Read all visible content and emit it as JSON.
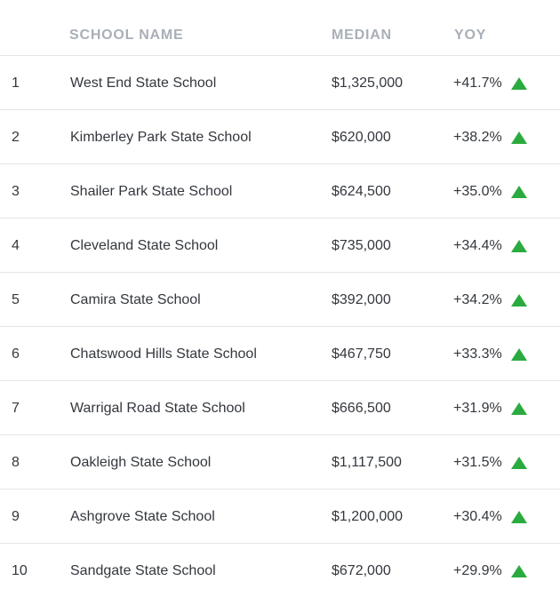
{
  "table": {
    "headers": {
      "name": "SCHOOL NAME",
      "median": "MEDIAN",
      "yoy": "YOY"
    },
    "rows": [
      {
        "rank": "1",
        "name": "West End State School",
        "median": "$1,325,000",
        "yoy": "+41.7%",
        "trend": "up-arrow-icon"
      },
      {
        "rank": "2",
        "name": "Kimberley Park State School",
        "median": "$620,000",
        "yoy": "+38.2%",
        "trend": "up-arrow-icon"
      },
      {
        "rank": "3",
        "name": "Shailer Park State School",
        "median": "$624,500",
        "yoy": "+35.0%",
        "trend": "up-arrow-icon"
      },
      {
        "rank": "4",
        "name": "Cleveland State School",
        "median": "$735,000",
        "yoy": "+34.4%",
        "trend": "up-arrow-icon"
      },
      {
        "rank": "5",
        "name": "Camira State School",
        "median": "$392,000",
        "yoy": "+34.2%",
        "trend": "up-arrow-icon"
      },
      {
        "rank": "6",
        "name": "Chatswood Hills State School",
        "median": "$467,750",
        "yoy": "+33.3%",
        "trend": "up-arrow-icon"
      },
      {
        "rank": "7",
        "name": "Warrigal Road State School",
        "median": "$666,500",
        "yoy": "+31.9%",
        "trend": "up-arrow-icon"
      },
      {
        "rank": "8",
        "name": "Oakleigh State School",
        "median": "$1,117,500",
        "yoy": "+31.5%",
        "trend": "up-arrow-icon"
      },
      {
        "rank": "9",
        "name": "Ashgrove State School",
        "median": "$1,200,000",
        "yoy": "+30.4%",
        "trend": "up-arrow-icon"
      },
      {
        "rank": "10",
        "name": "Sandgate State School",
        "median": "$672,000",
        "yoy": "+29.9%",
        "trend": "up-arrow-icon"
      }
    ]
  },
  "colors": {
    "up_arrow": "#2bab3f",
    "header_text": "#a9afb8",
    "row_text": "#33373d",
    "divider": "#e3e5e8"
  }
}
